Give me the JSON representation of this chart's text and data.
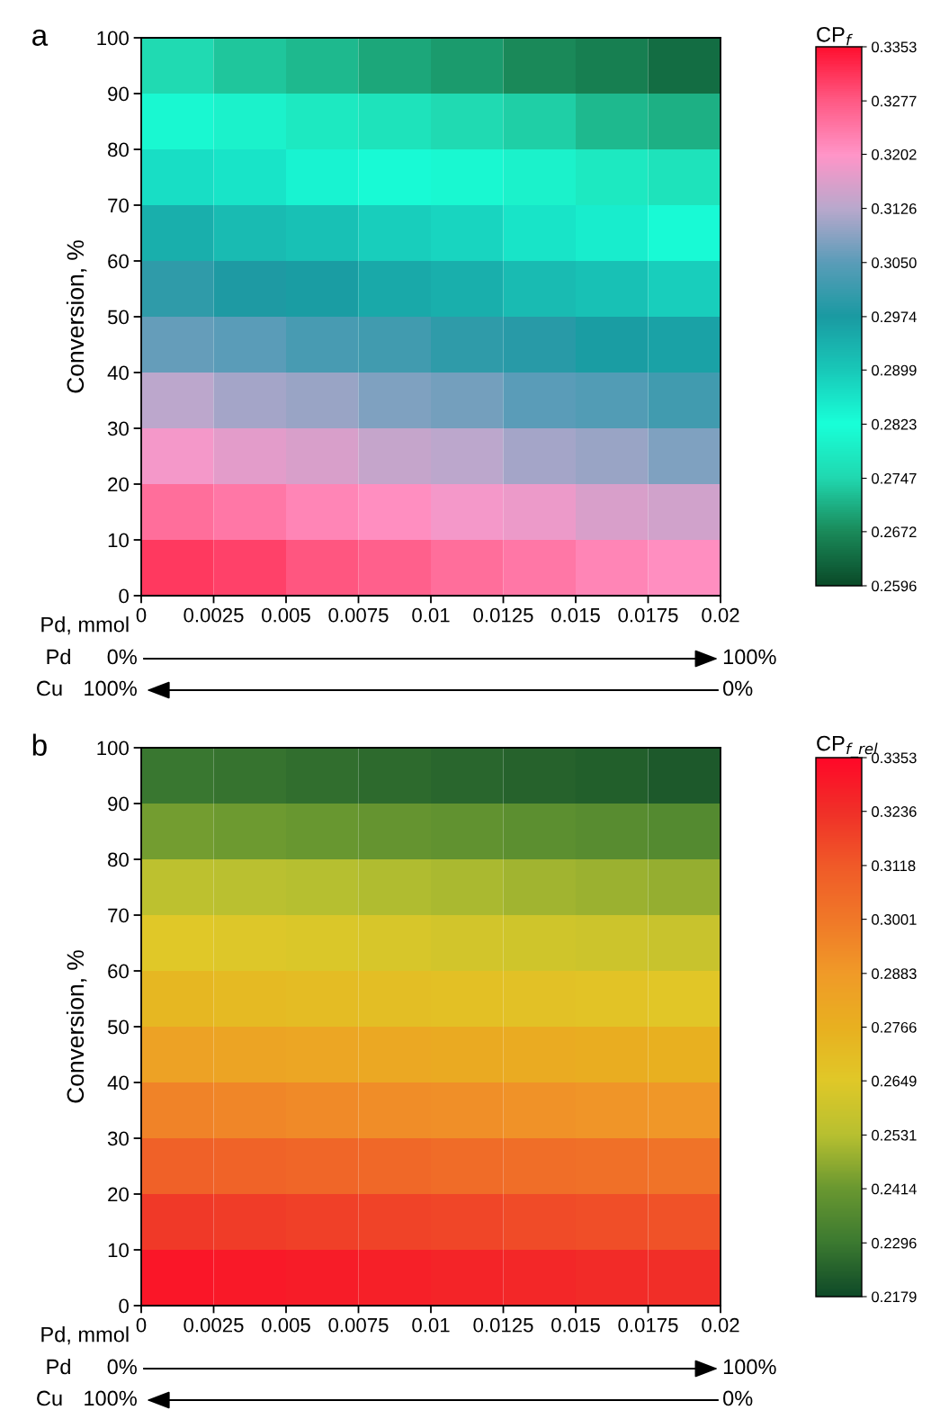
{
  "chart_data": [
    {
      "type": "heatmap",
      "title": "a",
      "xlabel": "Pd, mmol",
      "ylabel": "Conversion, %",
      "clabel": "CP$_{f}$",
      "x": [
        0.00125,
        0.00375,
        0.00625,
        0.00875,
        0.01125,
        0.01375,
        0.01625,
        0.01875
      ],
      "y": [
        95,
        85,
        75,
        65,
        55,
        45,
        35,
        25,
        15,
        5
      ],
      "xlim": [
        0,
        0.02
      ],
      "xticks": [
        0,
        0.0025,
        0.005,
        0.0075,
        0.01,
        0.0125,
        0.015,
        0.0175,
        0.02
      ],
      "ylim": [
        0,
        100
      ],
      "yticks": [
        0,
        10,
        20,
        30,
        40,
        50,
        60,
        70,
        80,
        90,
        100
      ],
      "clim": [
        0.2596,
        0.3353
      ],
      "cticks": [
        {
          "value": 0.2596,
          "label": "0.2596"
        },
        {
          "value": 0.2672,
          "label": "0.2672"
        },
        {
          "value": 0.2747,
          "label": "0.2747"
        },
        {
          "value": 0.2823,
          "label": "0.2823"
        },
        {
          "value": 0.2899,
          "label": "0.2899"
        },
        {
          "value": 0.2974,
          "label": "0.2974"
        },
        {
          "value": 0.305,
          "label": "0.3050"
        },
        {
          "value": 0.3126,
          "label": "0.3126"
        },
        {
          "value": 0.3202,
          "label": "0.3202"
        },
        {
          "value": 0.3277,
          "label": "0.3277"
        },
        {
          "value": 0.3353,
          "label": "0.3353"
        }
      ],
      "colors": [
        "#0a4a28",
        "#1a8a5a",
        "#20d8b0",
        "#18ffd8",
        "#18c8b8",
        "#1a9aa2",
        "#5a9cb8",
        "#b8a8cc",
        "#ff95c8",
        "#ff5a85",
        "#ff1030"
      ],
      "cells": [
        [
          0.275,
          0.273,
          0.272,
          0.27,
          0.269,
          0.267,
          0.266,
          0.264
        ],
        [
          0.281,
          0.28,
          0.278,
          0.277,
          0.275,
          0.274,
          0.272,
          0.271
        ],
        [
          0.287,
          0.286,
          0.284,
          0.283,
          0.281,
          0.28,
          0.278,
          0.277
        ],
        [
          0.294,
          0.292,
          0.291,
          0.289,
          0.288,
          0.286,
          0.285,
          0.283
        ],
        [
          0.3,
          0.298,
          0.297,
          0.295,
          0.294,
          0.292,
          0.291,
          0.289
        ],
        [
          0.306,
          0.305,
          0.303,
          0.302,
          0.3,
          0.299,
          0.297,
          0.296
        ],
        [
          0.313,
          0.311,
          0.31,
          0.308,
          0.307,
          0.305,
          0.304,
          0.302
        ],
        [
          0.319,
          0.317,
          0.316,
          0.314,
          0.313,
          0.311,
          0.31,
          0.308
        ],
        [
          0.325,
          0.324,
          0.322,
          0.321,
          0.319,
          0.318,
          0.316,
          0.315
        ],
        [
          0.331,
          0.33,
          0.328,
          0.327,
          0.325,
          0.324,
          0.322,
          0.321
        ]
      ],
      "annotations": [
        "Pd",
        "0%",
        "100%",
        "Cu",
        "100%",
        "0%"
      ]
    },
    {
      "type": "heatmap",
      "title": "b",
      "xlabel": "Pd, mmol",
      "ylabel": "Conversion, %",
      "clabel": "CP$_{f_rel}$",
      "x": [
        0.00125,
        0.00375,
        0.00625,
        0.00875,
        0.01125,
        0.01375,
        0.01625,
        0.01875
      ],
      "y": [
        95,
        85,
        75,
        65,
        55,
        45,
        35,
        25,
        15,
        5
      ],
      "xlim": [
        0,
        0.02
      ],
      "xticks": [
        0,
        0.0025,
        0.005,
        0.0075,
        0.01,
        0.0125,
        0.015,
        0.0175,
        0.02
      ],
      "ylim": [
        0,
        100
      ],
      "yticks": [
        0,
        10,
        20,
        30,
        40,
        50,
        60,
        70,
        80,
        90,
        100
      ],
      "clim": [
        0.2179,
        0.3353
      ],
      "cticks": [
        0.2179,
        0.2296,
        0.2414,
        0.2531,
        0.2649,
        0.2766,
        0.2883,
        0.3001,
        0.3118,
        0.3236,
        0.3353
      ],
      "colors": [
        "#0f4a28",
        "#3c7a30",
        "#6a9830",
        "#b8c030",
        "#e0c828",
        "#e8b020",
        "#f09a28",
        "#f07828",
        "#f05a28",
        "#f03028",
        "#ff0828"
      ],
      "cells": [
        [
          0.229,
          0.228,
          0.227,
          0.226,
          0.225,
          0.224,
          0.223,
          0.222
        ],
        [
          0.243,
          0.242,
          0.241,
          0.24,
          0.239,
          0.238,
          0.237,
          0.236
        ],
        [
          0.255,
          0.254,
          0.253,
          0.252,
          0.251,
          0.25,
          0.249,
          0.248
        ],
        [
          0.265,
          0.264,
          0.263,
          0.262,
          0.261,
          0.26,
          0.259,
          0.258
        ],
        [
          0.273,
          0.272,
          0.271,
          0.27,
          0.269,
          0.268,
          0.267,
          0.266
        ],
        [
          0.284,
          0.283,
          0.282,
          0.281,
          0.28,
          0.279,
          0.278,
          0.277
        ],
        [
          0.296,
          0.295,
          0.294,
          0.293,
          0.292,
          0.291,
          0.29,
          0.289
        ],
        [
          0.309,
          0.308,
          0.307,
          0.306,
          0.305,
          0.304,
          0.303,
          0.302
        ],
        [
          0.321,
          0.32,
          0.319,
          0.318,
          0.317,
          0.316,
          0.315,
          0.314
        ],
        [
          0.331,
          0.33,
          0.329,
          0.328,
          0.327,
          0.326,
          0.325,
          0.324
        ]
      ],
      "annotations": [
        "Pd",
        "0%",
        "100%",
        "Cu",
        "100%",
        "0%"
      ]
    }
  ]
}
